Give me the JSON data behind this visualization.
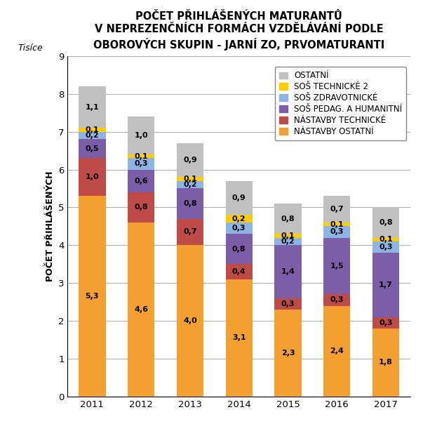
{
  "title": "POČET PŘIHLÁŠENÝCH MATURANTŮ\nV NEPREZENČNÍCH FORMÁCH VZDĚLÁVÁNÍ PODLE\nOBOROVÝCH SKUPIN - JARNÍ ZO, PRVOMATURANTI",
  "ylabel": "POČET PŘIHLÁŠENÝCH",
  "xlabel_tisice": "Tisíce",
  "years": [
    2011,
    2012,
    2013,
    2014,
    2015,
    2016,
    2017
  ],
  "series": {
    "NÁSTAVBY OSTATNÍ": [
      5.3,
      4.6,
      4.0,
      3.1,
      2.3,
      2.4,
      1.8
    ],
    "NÁSTAVBY TECHNICKÉ": [
      1.0,
      0.8,
      0.7,
      0.4,
      0.3,
      0.3,
      0.3
    ],
    "SOŠ PEDAG. A HUMANITNÍ": [
      0.5,
      0.6,
      0.8,
      0.8,
      1.4,
      1.5,
      1.7
    ],
    "SOŠ ZDRAVOTNICKÉ": [
      0.2,
      0.3,
      0.2,
      0.3,
      0.2,
      0.3,
      0.3
    ],
    "SOŠ TECHNICKÉ 2": [
      0.1,
      0.1,
      0.1,
      0.2,
      0.1,
      0.1,
      0.1
    ],
    "OSTATNÍ": [
      1.1,
      1.0,
      0.9,
      0.9,
      0.8,
      0.7,
      0.8
    ]
  },
  "colors": {
    "NÁSTAVBY OSTATNÍ": "#F4A030",
    "NÁSTAVBY TECHNICKÉ": "#BE4B48",
    "SOŠ PEDAG. A HUMANITNÍ": "#7B5EA7",
    "SOŠ ZDRAVOTNICKÉ": "#8DB4E2",
    "SOŠ TECHNICKÉ 2": "#FFCC00",
    "OSTATNÍ": "#C0C0C0"
  },
  "ylim": [
    0,
    9
  ],
  "yticks": [
    0,
    1,
    2,
    3,
    4,
    5,
    6,
    7,
    8,
    9
  ],
  "legend_order": [
    "OSTATNÍ",
    "SOŠ TECHNICKÉ 2",
    "SOŠ ZDRAVOTNICKÉ",
    "SOŠ PEDAG. A HUMANITNÍ",
    "NÁSTAVBY TECHNICKÉ",
    "NÁSTAVBY OSTATNÍ"
  ],
  "bar_width": 0.55,
  "title_fontsize": 10.5,
  "axis_label_fontsize": 9,
  "tick_fontsize": 9.5,
  "legend_fontsize": 8.5,
  "annotation_fontsize": 8,
  "background_color": "#FFFFFF",
  "plot_bg_color": "#FFFFFF"
}
